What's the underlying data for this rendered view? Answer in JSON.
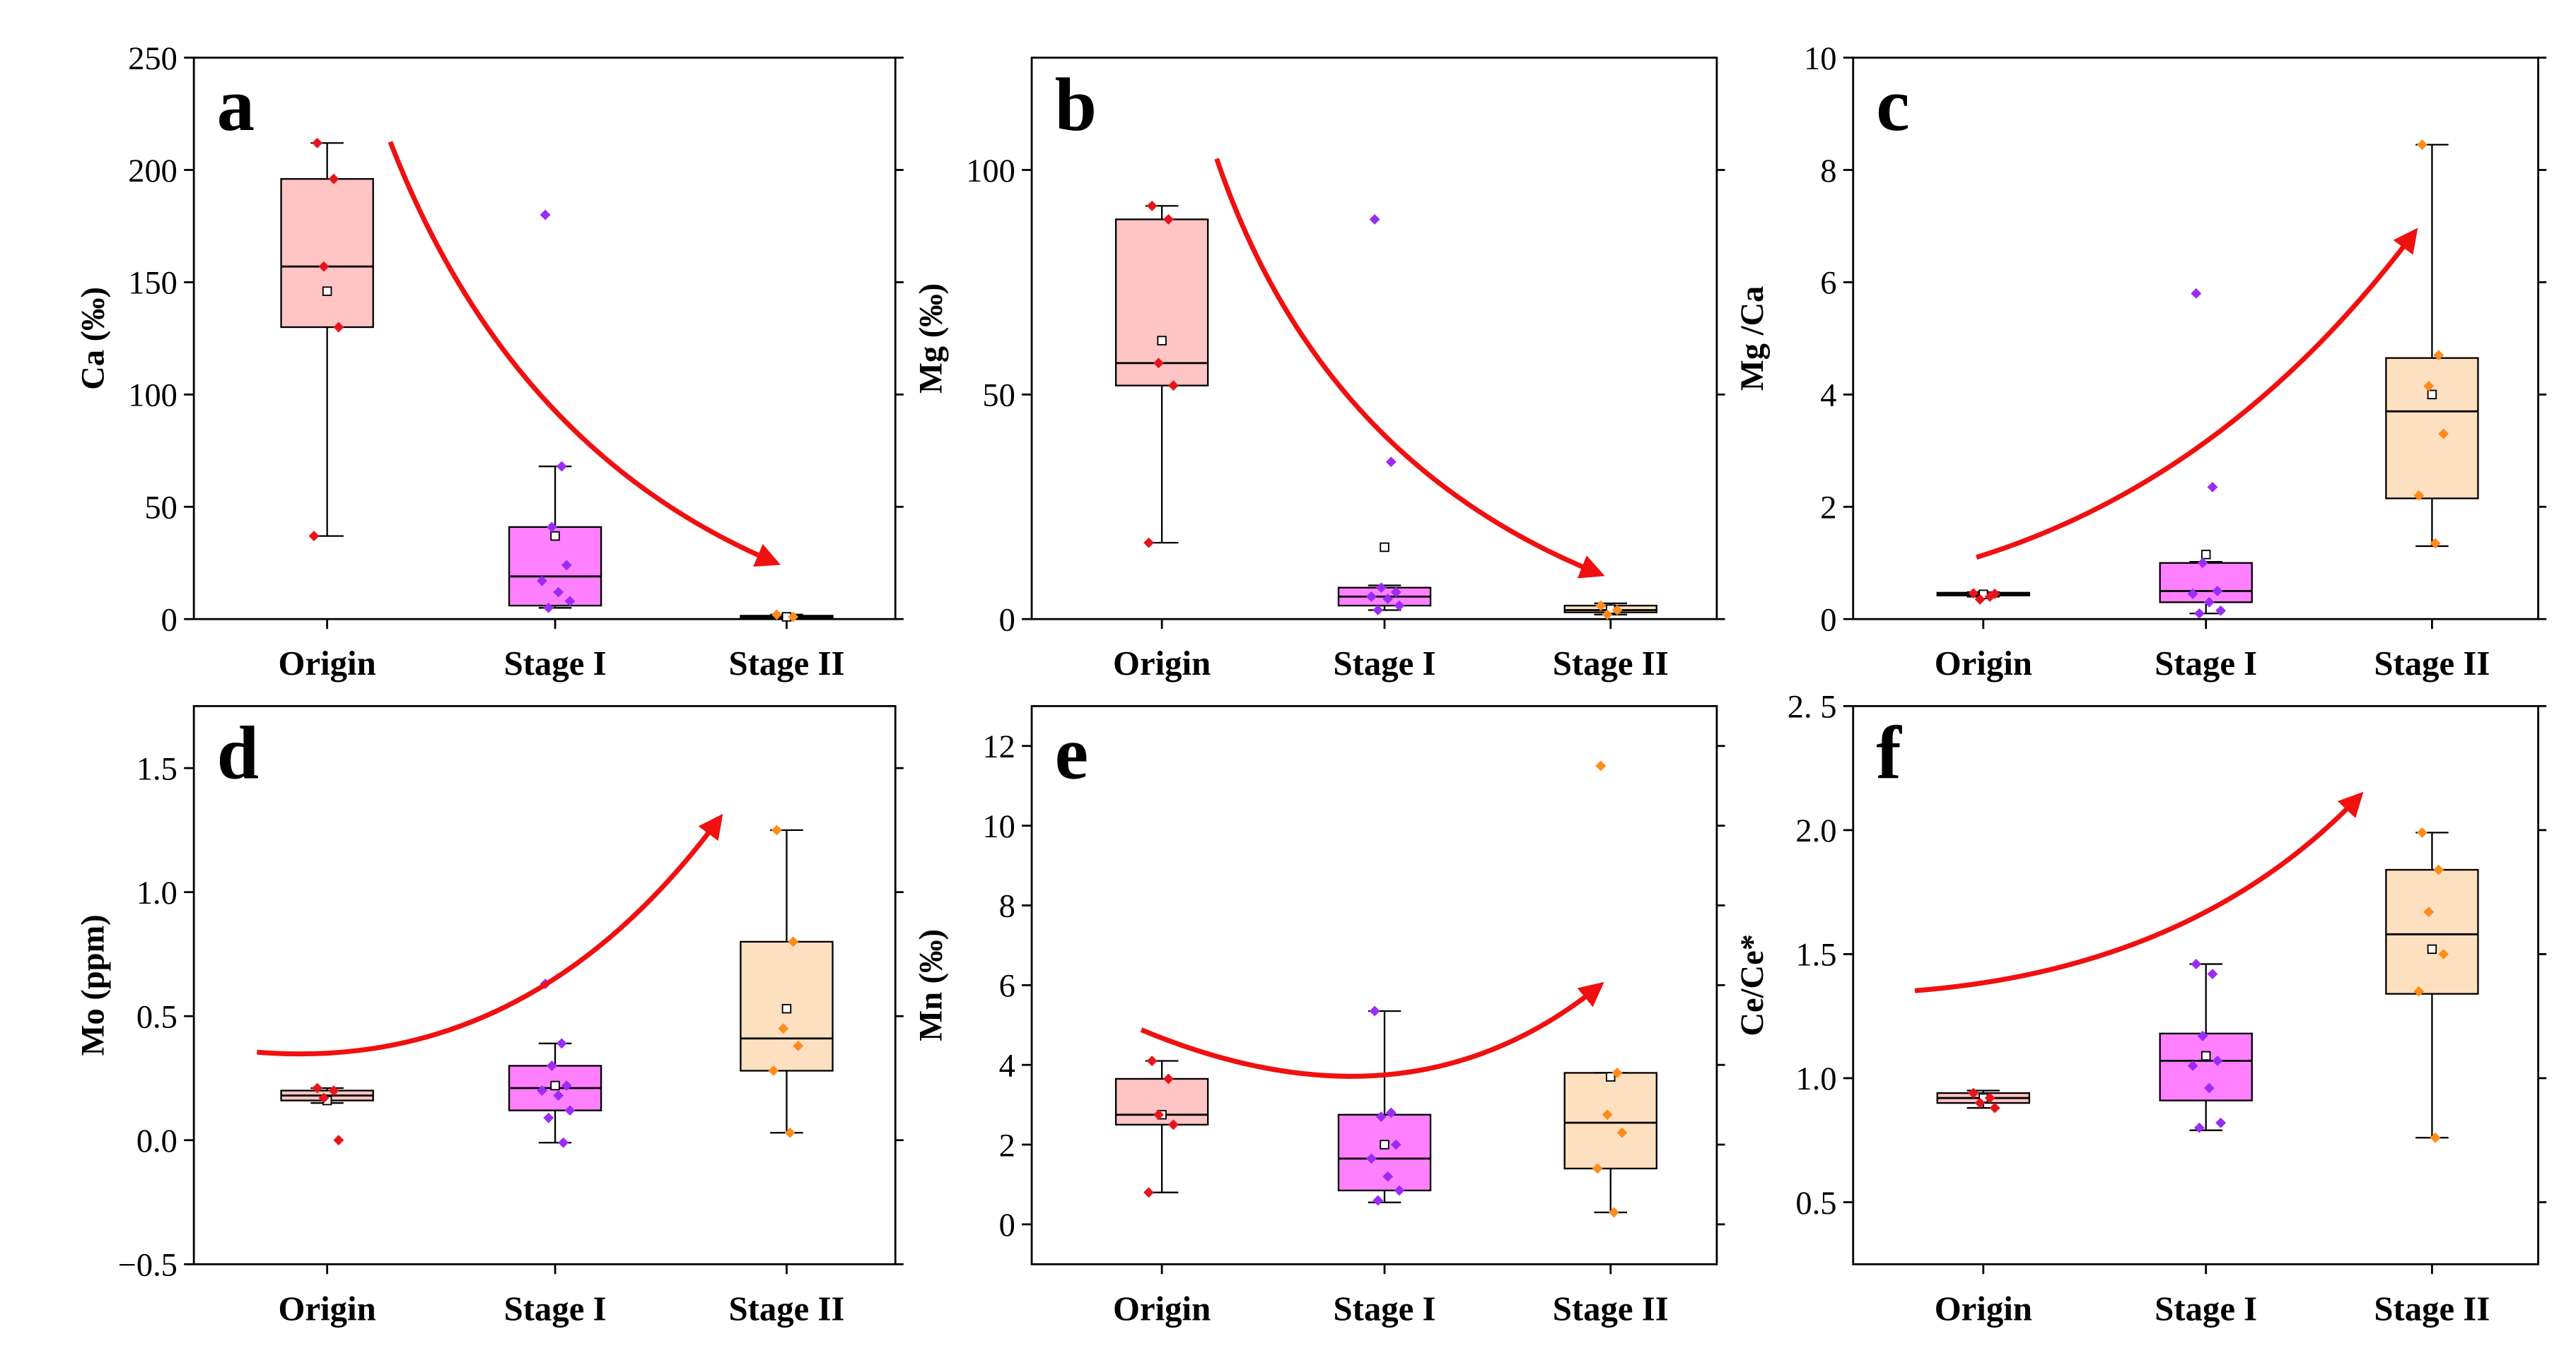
{
  "chart_data": [
    {
      "type": "box",
      "panel_label": "a",
      "ylabel": "Ca (‰)",
      "categories": [
        "Origin",
        "Stage I",
        "Stage II"
      ],
      "ylim": [
        0,
        250
      ],
      "yticks": [
        0,
        50,
        100,
        150,
        200,
        250
      ],
      "boxes": [
        {
          "color": "#ffc4c4",
          "point_color": "#e8141c",
          "whisker_low": 37,
          "q1": 130,
          "median": 157,
          "q3": 196,
          "whisker_high": 212,
          "mean": 146,
          "points": [
            212,
            196,
            157,
            130,
            37
          ]
        },
        {
          "color": "#ff80ff",
          "point_color": "#9b2cf5",
          "whisker_low": 5,
          "q1": 6,
          "median": 19,
          "q3": 41,
          "whisker_high": 68,
          "mean": 37,
          "points": [
            180,
            68,
            41,
            24,
            17,
            12,
            8,
            5
          ]
        },
        {
          "color": "#fde0c0",
          "point_color": "#ff8c1a",
          "whisker_low": 0,
          "q1": 0.5,
          "median": 1,
          "q3": 1.5,
          "whisker_high": 2,
          "mean": 1,
          "points": [
            2,
            1
          ]
        }
      ]
    },
    {
      "type": "box",
      "panel_label": "b",
      "ylabel": "Mg (‰)",
      "categories": [
        "Origin",
        "Stage I",
        "Stage II"
      ],
      "ylim": [
        0,
        125
      ],
      "yticks": [
        0,
        50,
        100
      ],
      "boxes": [
        {
          "color": "#ffc4c4",
          "point_color": "#e8141c",
          "whisker_low": 17,
          "q1": 52,
          "median": 57,
          "q3": 89,
          "whisker_high": 92,
          "mean": 62,
          "points": [
            92,
            89,
            57,
            52,
            17
          ]
        },
        {
          "color": "#ff80ff",
          "point_color": "#9b2cf5",
          "whisker_low": 2,
          "q1": 3,
          "median": 5,
          "q3": 7,
          "whisker_high": 7.5,
          "mean": 16,
          "points": [
            89,
            35,
            7,
            6,
            5,
            4.5,
            3,
            2
          ]
        },
        {
          "color": "#fde0c0",
          "point_color": "#ff8c1a",
          "whisker_low": 1,
          "q1": 1.5,
          "median": 2,
          "q3": 3,
          "whisker_high": 3.5,
          "mean": 2.2,
          "points": [
            3,
            2,
            1
          ]
        }
      ]
    },
    {
      "type": "box",
      "panel_label": "c",
      "ylabel": "Mg /Ca",
      "categories": [
        "Origin",
        "Stage I",
        "Stage II"
      ],
      "ylim": [
        0,
        10
      ],
      "yticks": [
        0,
        2,
        4,
        6,
        8,
        10
      ],
      "boxes": [
        {
          "color": "#ffc4c4",
          "point_color": "#e8141c",
          "whisker_low": 0.4,
          "q1": 0.42,
          "median": 0.45,
          "q3": 0.47,
          "whisker_high": 0.48,
          "mean": 0.44,
          "points": [
            0.46,
            0.4,
            0.35,
            0.45
          ]
        },
        {
          "color": "#ff80ff",
          "point_color": "#9b2cf5",
          "whisker_low": 0.1,
          "q1": 0.3,
          "median": 0.5,
          "q3": 1.0,
          "whisker_high": 1.02,
          "mean": 1.15,
          "points": [
            5.8,
            2.35,
            1.0,
            0.5,
            0.45,
            0.3,
            0.15,
            0.1
          ]
        },
        {
          "color": "#fde0c0",
          "point_color": "#ff8c1a",
          "whisker_low": 1.3,
          "q1": 2.15,
          "median": 3.7,
          "q3": 4.65,
          "whisker_high": 8.45,
          "mean": 4.0,
          "points": [
            8.45,
            4.7,
            4.15,
            3.3,
            2.2,
            1.35
          ]
        }
      ]
    },
    {
      "type": "box",
      "panel_label": "d",
      "ylabel": "Mo (ppm)",
      "categories": [
        "Origin",
        "Stage I",
        "Stage II"
      ],
      "ylim": [
        -0.5,
        1.75
      ],
      "yticks": [
        {
          "value": -0.5,
          "label": "−0.5"
        },
        {
          "value": 0,
          "label": "0.0"
        },
        0.5,
        {
          "value": 1,
          "label": "1.0"
        },
        1.5
      ],
      "boxes": [
        {
          "color": "#ffc4c4",
          "point_color": "#e8141c",
          "whisker_low": 0.15,
          "q1": 0.16,
          "median": 0.18,
          "q3": 0.2,
          "whisker_high": 0.21,
          "mean": 0.16,
          "points": [
            0.21,
            0.2,
            0.17,
            0.0
          ]
        },
        {
          "color": "#ff80ff",
          "point_color": "#9b2cf5",
          "whisker_low": -0.01,
          "q1": 0.12,
          "median": 0.21,
          "q3": 0.3,
          "whisker_high": 0.39,
          "mean": 0.22,
          "points": [
            0.63,
            0.39,
            0.3,
            0.22,
            0.2,
            0.18,
            0.12,
            0.09,
            -0.01
          ]
        },
        {
          "color": "#fde0c0",
          "point_color": "#ff8c1a",
          "whisker_low": 0.03,
          "q1": 0.28,
          "median": 0.41,
          "q3": 0.8,
          "whisker_high": 1.25,
          "mean": 0.53,
          "points": [
            1.25,
            0.8,
            0.45,
            0.38,
            0.28,
            0.03
          ]
        }
      ]
    },
    {
      "type": "box",
      "panel_label": "e",
      "ylabel": "Mn (‰)",
      "categories": [
        "Origin",
        "Stage I",
        "Stage II"
      ],
      "ylim": [
        -1,
        13
      ],
      "yticks": [
        0,
        2,
        4,
        6,
        8,
        10,
        12
      ],
      "boxes": [
        {
          "color": "#ffc4c4",
          "point_color": "#e8141c",
          "whisker_low": 0.8,
          "q1": 2.5,
          "median": 2.75,
          "q3": 3.65,
          "whisker_high": 4.1,
          "mean": 2.75,
          "points": [
            4.1,
            3.65,
            2.75,
            2.5,
            0.8
          ]
        },
        {
          "color": "#ff80ff",
          "point_color": "#9b2cf5",
          "whisker_low": 0.55,
          "q1": 0.85,
          "median": 1.65,
          "q3": 2.75,
          "whisker_high": 5.35,
          "mean": 2.0,
          "points": [
            5.35,
            2.8,
            2.7,
            2.0,
            1.65,
            1.2,
            0.85,
            0.6
          ]
        },
        {
          "color": "#fde0c0",
          "point_color": "#ff8c1a",
          "whisker_low": 0.3,
          "q1": 1.4,
          "median": 2.55,
          "q3": 3.8,
          "whisker_high": 3.8,
          "mean": 3.7,
          "points": [
            11.5,
            3.8,
            2.75,
            2.3,
            1.4,
            0.3
          ]
        }
      ]
    },
    {
      "type": "box",
      "panel_label": "f",
      "ylabel": "Ce/Ce*",
      "categories": [
        "Origin",
        "Stage I",
        "Stage II"
      ],
      "ylim": [
        0.25,
        2.5
      ],
      "yticks": [
        0.5,
        {
          "value": 1,
          "label": "1.0"
        },
        1.5,
        {
          "value": 2,
          "label": "2.0"
        },
        {
          "value": 2.5,
          "label": "2. 5"
        }
      ],
      "boxes": [
        {
          "color": "#ffc4c4",
          "point_color": "#e8141c",
          "whisker_low": 0.88,
          "q1": 0.9,
          "median": 0.92,
          "q3": 0.94,
          "whisker_high": 0.95,
          "mean": 0.92,
          "points": [
            0.94,
            0.92,
            0.9,
            0.88
          ]
        },
        {
          "color": "#ff80ff",
          "point_color": "#9b2cf5",
          "whisker_low": 0.79,
          "q1": 0.91,
          "median": 1.07,
          "q3": 1.18,
          "whisker_high": 1.46,
          "mean": 1.09,
          "points": [
            1.46,
            1.42,
            1.17,
            1.07,
            1.05,
            0.96,
            0.82,
            0.8
          ]
        },
        {
          "color": "#fde0c0",
          "point_color": "#ff8c1a",
          "whisker_low": 0.76,
          "q1": 1.34,
          "median": 1.58,
          "q3": 1.84,
          "whisker_high": 1.99,
          "mean": 1.52,
          "points": [
            1.99,
            1.84,
            1.67,
            1.5,
            1.35,
            0.76
          ]
        }
      ]
    }
  ]
}
